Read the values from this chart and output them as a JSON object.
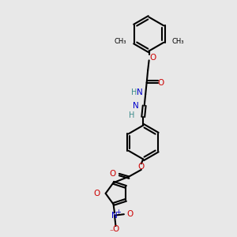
{
  "bg_color": "#e8e8e8",
  "bond_color": "#000000",
  "bond_width": 1.5,
  "O_color": "#cc0000",
  "N_color": "#0000cc",
  "H_color": "#3a8a8a",
  "figsize": [
    3.0,
    3.0
  ],
  "dpi": 100,
  "xlim": [
    0,
    10
  ],
  "ylim": [
    0,
    10
  ]
}
